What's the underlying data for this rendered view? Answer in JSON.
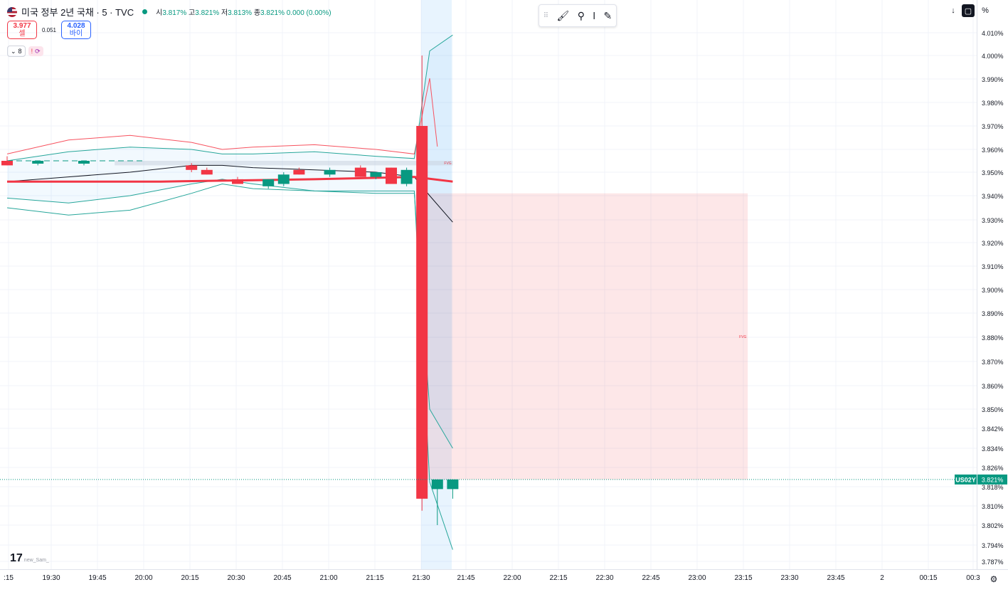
{
  "legend": {
    "title": "미국 정부 2년 국채 · 5 · TVC",
    "open_label": "시",
    "open": "3.817%",
    "high_label": "고",
    "high": "3.821%",
    "low_label": "저",
    "low": "3.813%",
    "close_label": "종",
    "close": "3.821%",
    "change": "0.000 (0.00%)"
  },
  "trade": {
    "sell_price": "3.977",
    "sell_label": "셀",
    "spread": "0.051",
    "buy_price": "4.028",
    "buy_label": "바이"
  },
  "indicators": {
    "count": "8",
    "warn": "!"
  },
  "toolbar": {
    "icons": [
      "brush-icon",
      "pin-icon",
      "marker-icon",
      "pencil-icon"
    ]
  },
  "right_controls": {
    "arrow": "↓",
    "percent": "%"
  },
  "watermark": {
    "logo": "17",
    "user": "new_Sam_"
  },
  "colors": {
    "up": "#089981",
    "down": "#f23645",
    "bb": "#26a69a",
    "upper": "#f7525f",
    "ma": "#131722"
  },
  "chart_data": {
    "type": "candlestick",
    "symbol": "US02Y",
    "last_price": "3.821%",
    "y_ticks": [
      "4.010%",
      "4.000%",
      "3.990%",
      "3.980%",
      "3.970%",
      "3.960%",
      "3.950%",
      "3.940%",
      "3.930%",
      "3.920%",
      "3.910%",
      "3.900%",
      "3.890%",
      "3.880%",
      "3.870%",
      "3.860%",
      "3.850%",
      "3.842%",
      "3.834%",
      "3.826%",
      "3.818%",
      "3.810%",
      "3.802%",
      "3.794%",
      "3.787%"
    ],
    "y_tick_values": [
      4.01,
      4.0,
      3.99,
      3.98,
      3.97,
      3.96,
      3.95,
      3.94,
      3.93,
      3.92,
      3.91,
      3.9,
      3.89,
      3.88,
      3.87,
      3.86,
      3.85,
      3.842,
      3.834,
      3.826,
      3.818,
      3.81,
      3.802,
      3.794,
      3.787
    ],
    "x_ticks": [
      ":15",
      "19:30",
      "19:45",
      "20:00",
      "20:15",
      "20:30",
      "20:45",
      "21:00",
      "21:15",
      "21:30",
      "21:45",
      "22:00",
      "22:15",
      "22:30",
      "22:45",
      "23:00",
      "23:15",
      "23:30",
      "23:45",
      "2",
      "00:15",
      "00:3"
    ],
    "candles": [
      {
        "i": 0,
        "o": 3.955,
        "h": 3.957,
        "l": 3.953,
        "c": 3.953
      },
      {
        "i": 2,
        "o": 3.954,
        "h": 3.955,
        "l": 3.953,
        "c": 3.955
      },
      {
        "i": 5,
        "o": 3.954,
        "h": 3.955,
        "l": 3.953,
        "c": 3.955
      },
      {
        "i": 12,
        "o": 3.953,
        "h": 3.954,
        "l": 3.95,
        "c": 3.951
      },
      {
        "i": 13,
        "o": 3.951,
        "h": 3.952,
        "l": 3.949,
        "c": 3.949
      },
      {
        "i": 15,
        "o": 3.947,
        "h": 3.948,
        "l": 3.945,
        "c": 3.945
      },
      {
        "i": 17,
        "o": 3.944,
        "h": 3.947,
        "l": 3.943,
        "c": 3.947
      },
      {
        "i": 18,
        "o": 3.945,
        "h": 3.95,
        "l": 3.944,
        "c": 3.949
      },
      {
        "i": 19,
        "o": 3.951,
        "h": 3.952,
        "l": 3.949,
        "c": 3.949
      },
      {
        "i": 21,
        "o": 3.949,
        "h": 3.952,
        "l": 3.948,
        "c": 3.951
      },
      {
        "i": 23,
        "o": 3.952,
        "h": 3.953,
        "l": 3.948,
        "c": 3.948
      },
      {
        "i": 24,
        "o": 3.948,
        "h": 3.95,
        "l": 3.947,
        "c": 3.95
      },
      {
        "i": 25,
        "o": 3.952,
        "h": 3.952,
        "l": 3.945,
        "c": 3.945
      },
      {
        "i": 26,
        "o": 3.945,
        "h": 3.952,
        "l": 3.944,
        "c": 3.951
      },
      {
        "i": 27,
        "o": 3.97,
        "h": 4.0,
        "l": 3.808,
        "c": 3.813
      },
      {
        "i": 28,
        "o": 3.817,
        "h": 3.821,
        "l": 3.802,
        "c": 3.821
      },
      {
        "i": 29,
        "o": 3.817,
        "h": 3.821,
        "l": 3.813,
        "c": 3.821
      }
    ],
    "fvg_zones": [
      {
        "label": "FVG",
        "top": 3.955,
        "bottom": 3.953,
        "from": 7,
        "to": 29
      },
      {
        "label": "FVG",
        "top": 3.941,
        "bottom": 3.821,
        "from": 26.6,
        "to": 48.2
      }
    ],
    "bb_upper": [
      [
        0,
        3.955
      ],
      [
        4,
        3.959
      ],
      [
        8,
        3.961
      ],
      [
        12,
        3.96
      ],
      [
        14,
        3.958
      ],
      [
        16,
        3.958
      ],
      [
        20,
        3.959
      ],
      [
        24,
        3.957
      ],
      [
        26.5,
        3.956
      ],
      [
        27.5,
        4.002
      ],
      [
        29,
        4.011
      ]
    ],
    "bb_lower": [
      [
        0,
        3.939
      ],
      [
        4,
        3.937
      ],
      [
        8,
        3.94
      ],
      [
        12,
        3.945
      ],
      [
        14,
        3.947
      ],
      [
        16,
        3.945
      ],
      [
        20,
        3.942
      ],
      [
        24,
        3.941
      ],
      [
        26.5,
        3.941
      ],
      [
        27.5,
        3.85
      ],
      [
        29,
        3.834
      ]
    ],
    "bb_lower2": [
      [
        0,
        3.935
      ],
      [
        4,
        3.932
      ],
      [
        8,
        3.934
      ],
      [
        12,
        3.941
      ],
      [
        14,
        3.945
      ],
      [
        16,
        3.943
      ],
      [
        20,
        3.942
      ],
      [
        24,
        3.942
      ],
      [
        26.5,
        3.942
      ],
      [
        27.5,
        3.82
      ],
      [
        29,
        3.792
      ]
    ],
    "outer_upper": [
      [
        0,
        3.958
      ],
      [
        4,
        3.964
      ],
      [
        8,
        3.966
      ],
      [
        12,
        3.963
      ],
      [
        14,
        3.96
      ],
      [
        16,
        3.961
      ],
      [
        20,
        3.962
      ],
      [
        24,
        3.96
      ],
      [
        26.5,
        3.958
      ],
      [
        27.5,
        4.03
      ],
      [
        28,
        4.06
      ]
    ],
    "ma_black": [
      [
        0,
        3.946
      ],
      [
        4,
        3.948
      ],
      [
        8,
        3.95
      ],
      [
        12,
        3.953
      ],
      [
        14,
        3.953
      ],
      [
        16,
        3.952
      ],
      [
        20,
        3.951
      ],
      [
        24,
        3.95
      ],
      [
        26.5,
        3.948
      ],
      [
        27.5,
        3.94
      ],
      [
        29,
        3.929
      ]
    ],
    "ma_red": [
      [
        0,
        3.946
      ],
      [
        10,
        3.946
      ],
      [
        20,
        3.947
      ],
      [
        26.5,
        3.948
      ],
      [
        29,
        3.946
      ]
    ]
  }
}
